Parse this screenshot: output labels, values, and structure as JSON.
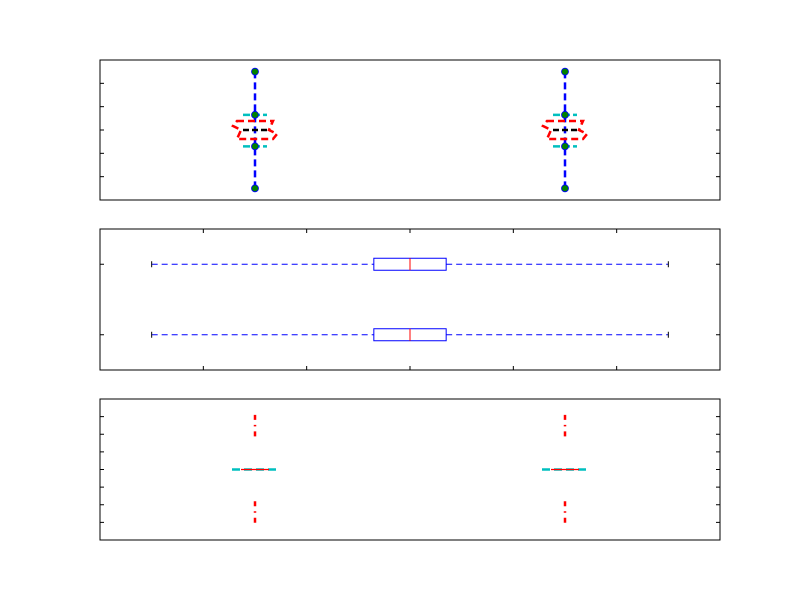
{
  "chart_data": [
    {
      "type": "box",
      "orientation": "vertical",
      "title": "",
      "xlabel": "",
      "ylabel": "",
      "tick_labels_visible": false,
      "grid": false,
      "xlim": [
        0.5,
        2.5
      ],
      "ylim": [
        -2.5,
        3.5
      ],
      "yticks": [
        -2.5,
        -1.5,
        -0.5,
        0.5,
        1.5,
        2.5,
        3.5
      ],
      "positions": [
        1,
        2
      ],
      "boxes": [
        {
          "whisker_low": -2.0,
          "q1": -0.2,
          "median": 0.5,
          "q3": 1.15,
          "whisker_high": 3.0,
          "points": [
            -2.0,
            -0.2,
            1.15,
            3.0
          ],
          "mean": 0.5
        },
        {
          "whisker_low": -2.0,
          "q1": -0.2,
          "median": 0.5,
          "q3": 1.15,
          "whisker_high": 3.0,
          "points": [
            -2.0,
            -0.2,
            1.15,
            3.0
          ],
          "mean": 0.5
        }
      ],
      "colors": {
        "whisker": "#0000ff",
        "box": "#ff0000",
        "median": "#000000",
        "cap": "#00bfbf",
        "point_fill": "#008000",
        "point_edge": "#0000ff"
      }
    },
    {
      "type": "box",
      "orientation": "horizontal",
      "title": "",
      "xlabel": "",
      "ylabel": "",
      "tick_labels_visible": false,
      "grid": false,
      "xlim": [
        -2,
        4
      ],
      "ylim": [
        0.5,
        2.5
      ],
      "xticks": [
        -2,
        -1,
        0,
        1,
        2,
        3,
        4
      ],
      "positions": [
        1,
        2
      ],
      "boxes": [
        {
          "whisker_low": -1.5,
          "q1": 0.65,
          "median": 1.0,
          "q3": 1.35,
          "whisker_high": 3.5
        },
        {
          "whisker_low": -1.5,
          "q1": 0.65,
          "median": 1.0,
          "q3": 1.35,
          "whisker_high": 3.5
        }
      ],
      "colors": {
        "box": "#0000ff",
        "whisker": "#0000ff",
        "median": "#ff0000",
        "cap": "#000000"
      }
    },
    {
      "type": "box",
      "orientation": "vertical",
      "title": "",
      "xlabel": "",
      "ylabel": "",
      "tick_labels_visible": false,
      "grid": false,
      "xlim": [
        0.5,
        2.5
      ],
      "ylim": [
        -4,
        4
      ],
      "yticks": [
        -4,
        -3,
        -2,
        -1,
        0,
        1,
        2,
        3,
        4
      ],
      "positions": [
        1,
        2
      ],
      "boxes": [
        {
          "whisker_low": -3.1,
          "q1": 0.0,
          "median": 0.0,
          "q3": 0.0,
          "whisker_high": 3.1,
          "dotted_span_low": [
            -3.1,
            -1.8
          ],
          "dotted_span_high": [
            1.8,
            3.1
          ]
        },
        {
          "whisker_low": -3.1,
          "q1": 0.0,
          "median": 0.0,
          "q3": 0.0,
          "whisker_high": 3.1,
          "dotted_span_low": [
            -3.1,
            -1.8
          ],
          "dotted_span_high": [
            1.8,
            3.1
          ]
        }
      ],
      "colors": {
        "whisker": "#ff0000",
        "cap": "#00bfbf",
        "median": "#ff0000"
      }
    }
  ]
}
